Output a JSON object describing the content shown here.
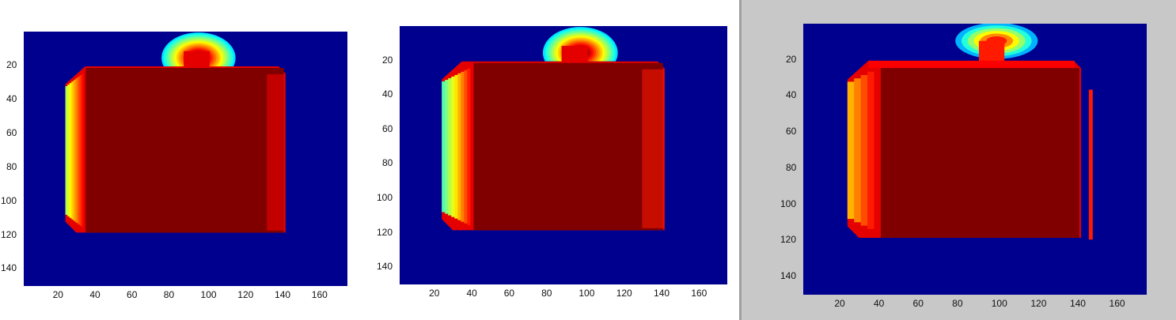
{
  "colors": {
    "background_blue": "#00008f",
    "inner_dark_red": "#800000",
    "window_gray": "#c8c8c8",
    "colormap": "jet"
  },
  "chart_data": [
    {
      "type": "heatmap",
      "title": "",
      "xlabel": "",
      "ylabel": "",
      "xlim": [
        1,
        175
      ],
      "ylim": [
        1,
        150
      ],
      "y_axis_direction": "reversed",
      "x_ticks": [
        "20",
        "40",
        "60",
        "80",
        "100",
        "120",
        "140",
        "160"
      ],
      "y_ticks": [
        "20",
        "40",
        "60",
        "80",
        "100",
        "120",
        "140"
      ],
      "grid": false,
      "legend": "none",
      "shapes": {
        "body": {
          "x": [
            23,
            142
          ],
          "y": [
            21,
            119
          ],
          "value": 1.0
        },
        "cap": {
          "x": [
            87,
            101
          ],
          "y": [
            12,
            21
          ],
          "value": 0.9
        },
        "top_dome": {
          "center_x": 95,
          "center_y": 16,
          "radius_x": 20,
          "radius_y": 15,
          "value_edge": 0.35,
          "value_center": 0.95
        },
        "left_edge_gradient": {
          "x": [
            23,
            34
          ],
          "value_edge": 0.55,
          "value_inner": 0.95
        },
        "right_edge_shade": {
          "x": [
            132,
            142
          ],
          "value": 0.88
        }
      }
    },
    {
      "type": "heatmap",
      "title": "",
      "xlabel": "",
      "ylabel": "",
      "xlim": [
        1,
        175
      ],
      "ylim": [
        1,
        150
      ],
      "y_axis_direction": "reversed",
      "x_ticks": [
        "20",
        "40",
        "60",
        "80",
        "100",
        "120",
        "140",
        "160"
      ],
      "y_ticks": [
        "20",
        "40",
        "60",
        "80",
        "100",
        "120",
        "140"
      ],
      "grid": false,
      "legend": "none",
      "shapes": {
        "body": {
          "x": [
            23,
            142
          ],
          "y": [
            21,
            119
          ],
          "value": 1.0
        },
        "cap": {
          "x": [
            87,
            101
          ],
          "y": [
            12,
            21
          ],
          "value": 0.9
        },
        "top_dome": {
          "center_x": 97,
          "center_y": 16,
          "radius_x": 20,
          "radius_y": 15,
          "value_edge": 0.35,
          "value_center": 0.95
        },
        "left_edge_gradient": {
          "x": [
            23,
            40
          ],
          "value_edge": 0.45,
          "value_inner": 0.95
        },
        "right_edge_shade": {
          "x": [
            130,
            142
          ],
          "value": 0.85
        }
      }
    },
    {
      "type": "heatmap",
      "title": "",
      "xlabel": "",
      "ylabel": "",
      "xlim": [
        1,
        175
      ],
      "ylim": [
        1,
        150
      ],
      "y_axis_direction": "reversed",
      "x_ticks": [
        "20",
        "40",
        "60",
        "80",
        "100",
        "120",
        "140",
        "160"
      ],
      "y_ticks": [
        "20",
        "40",
        "60",
        "80",
        "100",
        "120",
        "140"
      ],
      "grid": false,
      "legend": "none",
      "pixelated": true,
      "shapes": {
        "body": {
          "x": [
            23,
            142
          ],
          "y": [
            21,
            119
          ],
          "value": 1.0
        },
        "cap": {
          "x": [
            90,
            103
          ],
          "y": [
            10,
            21
          ],
          "value": 0.85
        },
        "top_dome": {
          "center_x": 99,
          "center_y": 10,
          "radius_x": 21,
          "radius_y": 10,
          "value_edge": 0.3,
          "value_center": 0.85
        },
        "left_edge_gradient": {
          "x": [
            23,
            40
          ],
          "value_edge": 0.7,
          "value_inner": 0.95
        },
        "top_edge_band": {
          "y": [
            21,
            25
          ],
          "value": 0.88
        },
        "right_stripe": {
          "x": [
            146,
            148
          ],
          "y": [
            37,
            120
          ],
          "value": 0.85
        }
      }
    }
  ]
}
